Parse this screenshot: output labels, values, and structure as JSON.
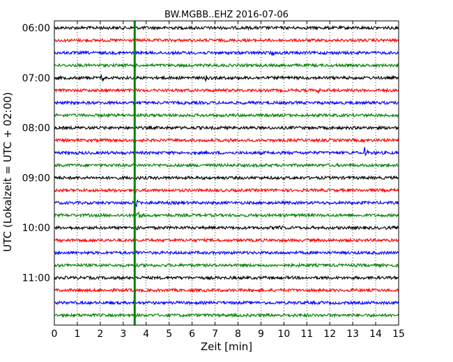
{
  "chart_data": {
    "type": "line",
    "title": "BW.MGBB..EHZ 2016-07-06",
    "xlabel": "Zeit  [min]",
    "ylabel": "UTC (Lokalzeit = UTC + 02:00)",
    "xlim": [
      0,
      15
    ],
    "x_ticks": [
      0,
      1,
      2,
      3,
      4,
      5,
      6,
      7,
      8,
      9,
      10,
      11,
      12,
      13,
      14,
      15
    ],
    "y_tick_labels": [
      "06:00",
      "07:00",
      "08:00",
      "09:00",
      "10:00",
      "11:00"
    ],
    "grid": "vertical dotted",
    "trace_colors": [
      "#000000",
      "#ff0000",
      "#0000ff",
      "#008000"
    ],
    "traces": [
      {
        "start": "06:00",
        "events": []
      },
      {
        "start": "06:15",
        "events": []
      },
      {
        "start": "06:30",
        "events": [
          {
            "t": 9.45,
            "amp": 0.55
          }
        ]
      },
      {
        "start": "06:45",
        "events": []
      },
      {
        "start": "07:00",
        "events": [
          {
            "t": 2.0,
            "amp": 0.9
          },
          {
            "t": 6.6,
            "amp": 0.4
          }
        ]
      },
      {
        "start": "07:15",
        "events": [
          {
            "t": 11.5,
            "amp": 0.5
          }
        ]
      },
      {
        "start": "07:30",
        "events": []
      },
      {
        "start": "07:45",
        "events": []
      },
      {
        "start": "08:00",
        "events": []
      },
      {
        "start": "08:15",
        "events": [
          {
            "t": 7.5,
            "amp": 0.35
          }
        ]
      },
      {
        "start": "08:30",
        "events": [
          {
            "t": 13.0,
            "amp": 0.45
          },
          {
            "t": 13.5,
            "amp": 1.0
          }
        ]
      },
      {
        "start": "08:45",
        "events": []
      },
      {
        "start": "09:00",
        "events": []
      },
      {
        "start": "09:15",
        "events": [
          {
            "t": 3.45,
            "amp": 0.5
          }
        ]
      },
      {
        "start": "09:30",
        "events": [
          {
            "t": 3.55,
            "amp": 0.9
          }
        ]
      },
      {
        "start": "09:45",
        "events": [
          {
            "t": 3.6,
            "amp": 1.2
          }
        ]
      },
      {
        "start": "10:00",
        "events": [
          {
            "t": 3.55,
            "amp": 0.7
          },
          {
            "t": 9.8,
            "amp": 0.3
          }
        ]
      },
      {
        "start": "10:15",
        "events": []
      },
      {
        "start": "10:30",
        "events": [
          {
            "t": 3.5,
            "amp": 0.35
          }
        ]
      },
      {
        "start": "10:45",
        "events": []
      },
      {
        "start": "11:00",
        "events": []
      },
      {
        "start": "11:15",
        "events": []
      },
      {
        "start": "11:30",
        "events": [
          {
            "t": 4.8,
            "amp": 0.3
          }
        ]
      },
      {
        "start": "11:45",
        "events": []
      }
    ],
    "markers": [
      {
        "x": 3.5,
        "color": "#008000",
        "style": "vertical-line"
      }
    ]
  }
}
